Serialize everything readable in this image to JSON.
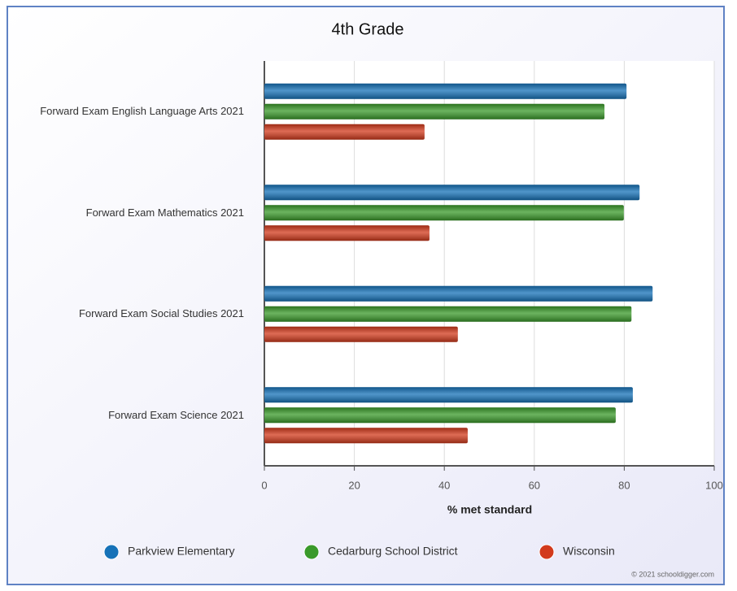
{
  "chart_data": {
    "type": "hbar",
    "title": "4th Grade",
    "categories": [
      "Forward Exam English Language Arts 2021",
      "Forward Exam Mathematics 2021",
      "Forward Exam Social Studies 2021",
      "Forward Exam Science 2021"
    ],
    "series": [
      {
        "name": "Parkview Elementary",
        "color": "#1672b8",
        "values": [
          80.5,
          83.4,
          86.3,
          81.9
        ]
      },
      {
        "name": "Cedarburg School District",
        "color": "#3a9a2a",
        "values": [
          75.6,
          79.9,
          81.6,
          78.1
        ]
      },
      {
        "name": "Wisconsin",
        "color": "#d23a1c",
        "values": [
          35.6,
          36.7,
          43.0,
          45.2
        ]
      }
    ],
    "xlabel": "% met standard",
    "xlim": [
      0,
      100
    ],
    "xticks": [
      0,
      20,
      40,
      60,
      80,
      100
    ],
    "grid": true,
    "legend": "bottom",
    "credit": "© 2021 schooldigger.com"
  }
}
